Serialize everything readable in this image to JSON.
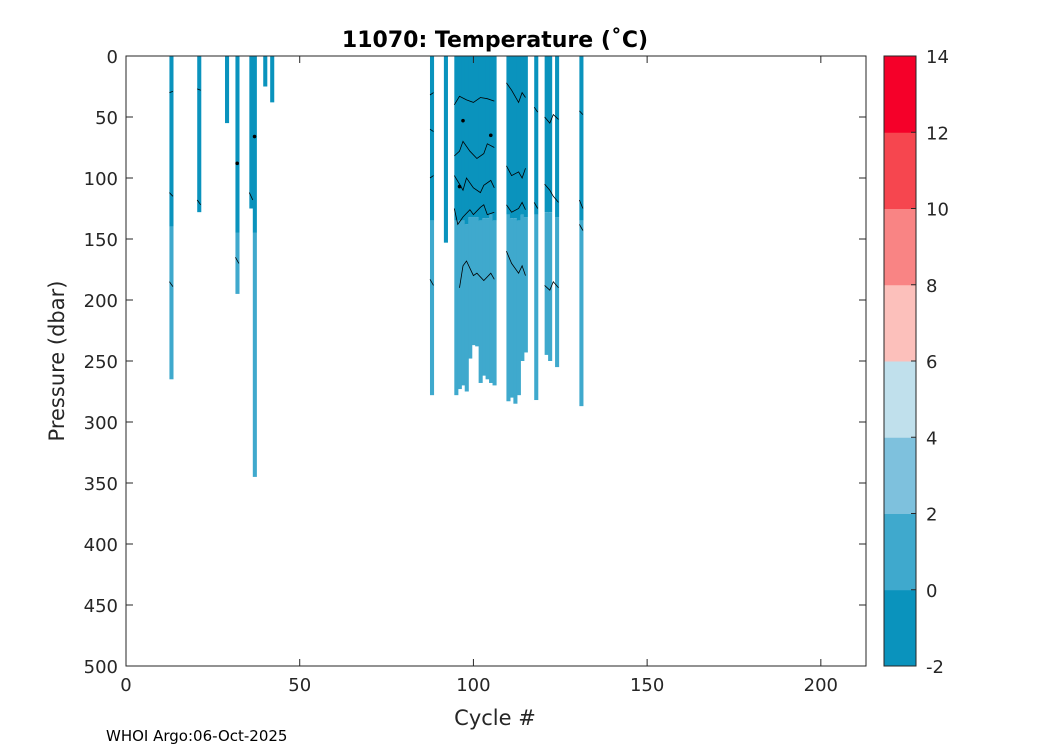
{
  "chart_data": {
    "type": "heatmap",
    "title": "11070:  Temperature (˚C)",
    "xlabel": "Cycle #",
    "ylabel": "Pressure (dbar)",
    "footer": "WHOI Argo:06-Oct-2025",
    "xlim": [
      0,
      213
    ],
    "ylim": [
      500,
      0
    ],
    "xticks": [
      "0",
      "50",
      "100",
      "150",
      "200"
    ],
    "yticks": [
      "0",
      "50",
      "100",
      "150",
      "200",
      "250",
      "300",
      "350",
      "400",
      "450",
      "500"
    ],
    "grid": false,
    "colorbar": {
      "ticks": [
        "-2",
        "0",
        "2",
        "4",
        "6",
        "8",
        "10",
        "12",
        "14"
      ],
      "range": [
        -2,
        14
      ],
      "colors": [
        "#0a93bd",
        "#3fa9cd",
        "#7ec1dd",
        "#c0e0ec",
        "#fcc0bb",
        "#f98484",
        "#f6464f",
        "#f50029"
      ]
    },
    "profiles": [
      {
        "cycle": 13,
        "max_pressure": 265,
        "cold_to_pressure": 140
      },
      {
        "cycle": 21,
        "max_pressure": 128,
        "cold_to_pressure": 128
      },
      {
        "cycle": 29,
        "max_pressure": 55,
        "cold_to_pressure": 55
      },
      {
        "cycle": 32,
        "max_pressure": 195,
        "cold_to_pressure": 145
      },
      {
        "cycle": 36,
        "max_pressure": 125,
        "cold_to_pressure": 125
      },
      {
        "cycle": 37,
        "max_pressure": 345,
        "cold_to_pressure": 145
      },
      {
        "cycle": 40,
        "max_pressure": 25,
        "cold_to_pressure": 25
      },
      {
        "cycle": 42,
        "max_pressure": 38,
        "cold_to_pressure": 38
      },
      {
        "cycle": 88,
        "max_pressure": 278,
        "cold_to_pressure": 135
      },
      {
        "cycle": 92,
        "max_pressure": 153,
        "cold_to_pressure": 153
      },
      {
        "cycle": 95,
        "max_pressure": 278,
        "cold_to_pressure": 135
      },
      {
        "cycle": 96,
        "max_pressure": 273,
        "cold_to_pressure": 135
      },
      {
        "cycle": 97,
        "max_pressure": 270,
        "cold_to_pressure": 135
      },
      {
        "cycle": 98,
        "max_pressure": 275,
        "cold_to_pressure": 138
      },
      {
        "cycle": 99,
        "max_pressure": 248,
        "cold_to_pressure": 132
      },
      {
        "cycle": 100,
        "max_pressure": 237,
        "cold_to_pressure": 132
      },
      {
        "cycle": 101,
        "max_pressure": 238,
        "cold_to_pressure": 132
      },
      {
        "cycle": 102,
        "max_pressure": 268,
        "cold_to_pressure": 135
      },
      {
        "cycle": 103,
        "max_pressure": 262,
        "cold_to_pressure": 133
      },
      {
        "cycle": 104,
        "max_pressure": 265,
        "cold_to_pressure": 133
      },
      {
        "cycle": 105,
        "max_pressure": 268,
        "cold_to_pressure": 130
      },
      {
        "cycle": 106,
        "max_pressure": 270,
        "cold_to_pressure": 135
      },
      {
        "cycle": 110,
        "max_pressure": 283,
        "cold_to_pressure": 130
      },
      {
        "cycle": 111,
        "max_pressure": 280,
        "cold_to_pressure": 133
      },
      {
        "cycle": 112,
        "max_pressure": 285,
        "cold_to_pressure": 133
      },
      {
        "cycle": 113,
        "max_pressure": 278,
        "cold_to_pressure": 135
      },
      {
        "cycle": 114,
        "max_pressure": 250,
        "cold_to_pressure": 130
      },
      {
        "cycle": 115,
        "max_pressure": 243,
        "cold_to_pressure": 132
      },
      {
        "cycle": 118,
        "max_pressure": 282,
        "cold_to_pressure": 130
      },
      {
        "cycle": 121,
        "max_pressure": 245,
        "cold_to_pressure": 128
      },
      {
        "cycle": 122,
        "max_pressure": 250,
        "cold_to_pressure": 128
      },
      {
        "cycle": 124,
        "max_pressure": 255,
        "cold_to_pressure": 132
      },
      {
        "cycle": 131,
        "max_pressure": 287,
        "cold_to_pressure": 135
      }
    ],
    "contours": [
      {
        "points": [
          [
            12.5,
            30
          ],
          [
            13.5,
            29
          ]
        ]
      },
      {
        "points": [
          [
            12.5,
            112
          ],
          [
            13.5,
            115
          ]
        ]
      },
      {
        "points": [
          [
            12.5,
            185
          ],
          [
            13.5,
            189
          ]
        ]
      },
      {
        "points": [
          [
            20.5,
            27
          ],
          [
            21.5,
            28
          ]
        ]
      },
      {
        "points": [
          [
            20.5,
            118
          ],
          [
            21.5,
            122
          ]
        ]
      },
      {
        "points": [
          [
            31.5,
            165
          ],
          [
            32.5,
            170
          ]
        ]
      },
      {
        "points": [
          [
            35.5,
            112
          ],
          [
            36.5,
            118
          ]
        ]
      },
      {
        "points": [
          [
            87.5,
            32
          ],
          [
            88.5,
            30
          ]
        ]
      },
      {
        "points": [
          [
            87.5,
            60
          ],
          [
            88.5,
            62
          ]
        ]
      },
      {
        "points": [
          [
            87.5,
            100
          ],
          [
            88.5,
            98
          ]
        ]
      },
      {
        "points": [
          [
            87.5,
            183
          ],
          [
            88.5,
            188
          ]
        ]
      },
      {
        "points": [
          [
            94.5,
            40
          ],
          [
            96,
            33
          ],
          [
            98,
            36
          ],
          [
            100,
            38
          ],
          [
            102,
            34
          ],
          [
            104,
            35
          ],
          [
            106,
            37
          ]
        ]
      },
      {
        "points": [
          [
            94.5,
            82
          ],
          [
            96,
            78
          ],
          [
            97,
            70
          ],
          [
            99,
            78
          ],
          [
            101,
            84
          ],
          [
            103,
            80
          ],
          [
            104,
            72
          ],
          [
            106,
            75
          ]
        ]
      },
      {
        "points": [
          [
            94.5,
            98
          ],
          [
            96,
            105
          ],
          [
            97,
            110
          ],
          [
            98,
            100
          ],
          [
            100,
            108
          ],
          [
            102,
            112
          ],
          [
            103,
            106
          ],
          [
            105,
            102
          ],
          [
            106,
            108
          ]
        ]
      },
      {
        "points": [
          [
            94.5,
            125
          ],
          [
            95.5,
            138
          ],
          [
            97,
            132
          ],
          [
            99,
            126
          ],
          [
            100,
            130
          ],
          [
            102,
            124
          ],
          [
            103,
            122
          ],
          [
            104,
            130
          ],
          [
            106,
            128
          ]
        ]
      },
      {
        "points": [
          [
            96,
            190
          ],
          [
            97,
            172
          ],
          [
            98,
            168
          ],
          [
            100,
            180
          ],
          [
            101,
            178
          ],
          [
            103,
            184
          ],
          [
            105,
            178
          ],
          [
            106,
            183
          ]
        ]
      },
      {
        "points": [
          [
            109.5,
            22
          ],
          [
            111,
            28
          ],
          [
            113,
            38
          ],
          [
            114,
            30
          ],
          [
            115,
            34
          ]
        ]
      },
      {
        "points": [
          [
            109.5,
            90
          ],
          [
            111,
            98
          ],
          [
            113,
            95
          ],
          [
            114,
            100
          ],
          [
            115,
            92
          ]
        ]
      },
      {
        "points": [
          [
            109.5,
            122
          ],
          [
            111,
            128
          ],
          [
            113,
            125
          ],
          [
            114,
            120
          ],
          [
            115,
            126
          ]
        ]
      },
      {
        "points": [
          [
            109.5,
            160
          ],
          [
            111,
            170
          ],
          [
            113,
            178
          ],
          [
            114,
            172
          ],
          [
            115,
            180
          ]
        ]
      },
      {
        "points": [
          [
            117.5,
            42
          ],
          [
            118.5,
            46
          ]
        ]
      },
      {
        "points": [
          [
            117.5,
            120
          ],
          [
            118.5,
            125
          ]
        ]
      },
      {
        "points": [
          [
            120.5,
            50
          ],
          [
            122,
            55
          ],
          [
            123,
            48
          ],
          [
            124.5,
            52
          ]
        ]
      },
      {
        "points": [
          [
            120.5,
            105
          ],
          [
            122,
            110
          ],
          [
            123,
            115
          ],
          [
            124.5,
            120
          ]
        ]
      },
      {
        "points": [
          [
            120.5,
            188
          ],
          [
            122,
            192
          ],
          [
            123,
            185
          ],
          [
            124.5,
            190
          ]
        ]
      },
      {
        "points": [
          [
            130.5,
            45
          ],
          [
            131.5,
            48
          ]
        ]
      },
      {
        "points": [
          [
            130.5,
            118
          ],
          [
            131.5,
            125
          ]
        ]
      },
      {
        "points": [
          [
            130.5,
            138
          ],
          [
            131.5,
            143
          ]
        ]
      }
    ],
    "contour_dots": [
      {
        "x": 32,
        "y": 88
      },
      {
        "x": 37,
        "y": 66
      },
      {
        "x": 97,
        "y": 53
      },
      {
        "x": 96,
        "y": 107
      },
      {
        "x": 105,
        "y": 65
      }
    ]
  }
}
